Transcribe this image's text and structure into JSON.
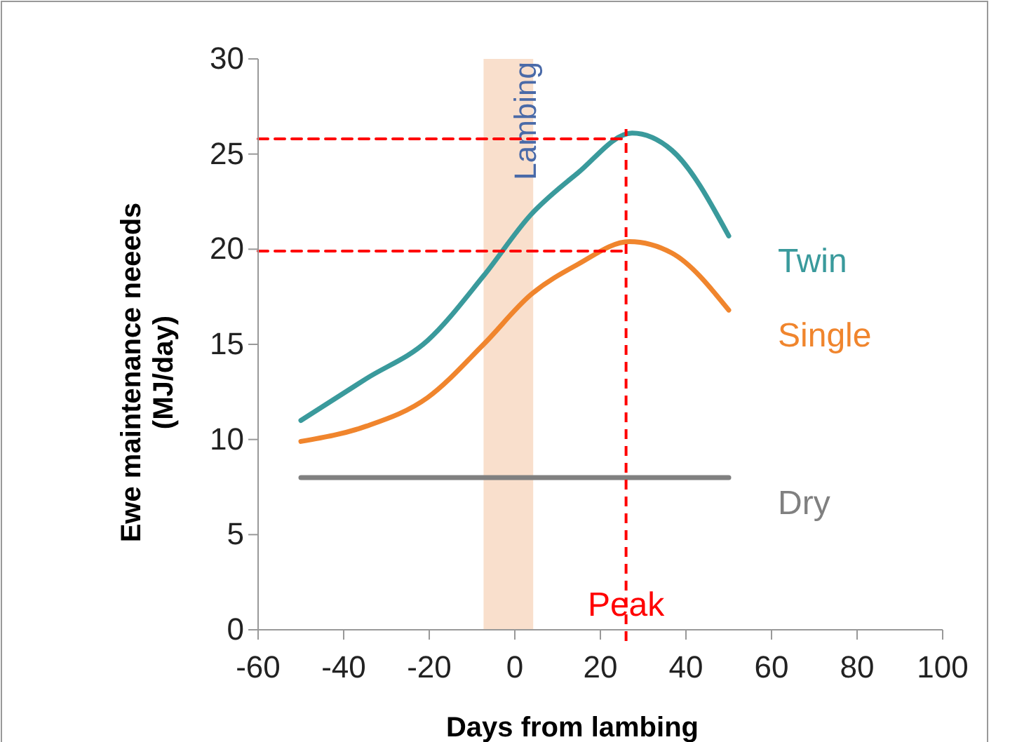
{
  "chart_data": {
    "type": "line",
    "xlabel": "Days from lambing",
    "ylabel": "Ewe maintenance neeeds (MJ/day)",
    "xlim": [
      -60,
      100
    ],
    "xticks": [
      -60,
      -40,
      -20,
      0,
      20,
      40,
      60,
      80,
      100
    ],
    "ylim": [
      0,
      30
    ],
    "yticks": [
      0,
      5,
      10,
      15,
      20,
      25,
      30
    ],
    "grid": false,
    "line_style": "solid",
    "marker": "none",
    "series": [
      {
        "name": "Twin",
        "color": "#3a9a9c",
        "x": [
          -50,
          -34.7,
          -20.4,
          -7.3,
          3.7,
          14.7,
          27.4,
          36.7,
          50
        ],
        "values": [
          11.0,
          13.2,
          15.2,
          18.6,
          21.8,
          24.0,
          26.1,
          25.2,
          20.7
        ]
      },
      {
        "name": "Single",
        "color": "#f0852d",
        "x": [
          -50,
          -34.7,
          -20.4,
          -7.3,
          3.7,
          14.7,
          26.8,
          36.7,
          50
        ],
        "values": [
          9.9,
          10.7,
          12.2,
          15.0,
          17.6,
          19.2,
          20.4,
          19.8,
          16.8
        ]
      },
      {
        "name": "Dry",
        "color": "#808080",
        "x": [
          -50,
          50
        ],
        "values": [
          8,
          8
        ]
      },
      {
        "color": "#ff0000",
        "line_style": "dashed",
        "x": [
          -60,
          26
        ],
        "values": [
          25.8,
          25.8
        ]
      },
      {
        "color": "#ff0000",
        "line_style": "dashed",
        "x": [
          -60,
          26
        ],
        "values": [
          19.9,
          19.9
        ]
      }
    ],
    "bands": [
      {
        "axis": "x",
        "from": -7.3,
        "to": 4.3,
        "label": "Lambing",
        "color": "#f8dcc6"
      }
    ],
    "ref_lines": [
      {
        "axis": "x",
        "value": 26,
        "label": "Peak",
        "color": "#ff0000",
        "line_style": "dashed"
      }
    ]
  }
}
